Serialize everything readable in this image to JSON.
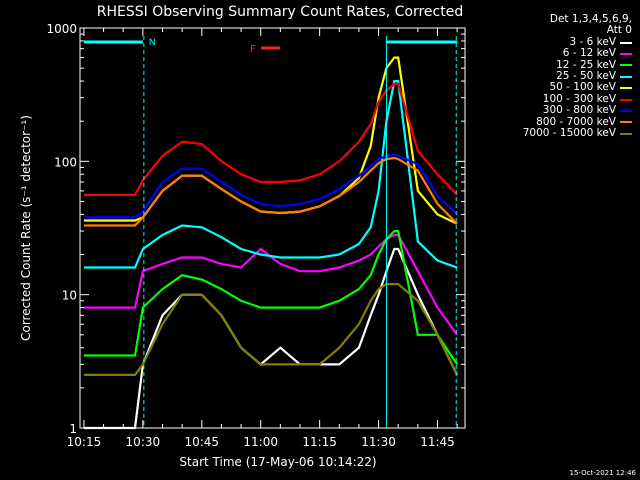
{
  "chart_data": {
    "type": "line",
    "title": "RHESSI Observing Summary Count Rates, Corrected",
    "ylabel": "Corrected Count Rate (s⁻¹ detector⁻¹)",
    "xlabel": "Start Time (17-May-06 10:14:22)",
    "yscale": "log",
    "ylim": [
      1,
      1000
    ],
    "y_ticks": [
      "1",
      "10",
      "100",
      "1000"
    ],
    "xlim": [
      "10:14",
      "11:52"
    ],
    "x_ticks": [
      "10:15",
      "10:30",
      "10:45",
      "11:00",
      "11:15",
      "11:30",
      "11:45"
    ],
    "legend_header": [
      "Det 1,3,4,5,6,9,",
      "Att 0"
    ],
    "flag_label_N": "N",
    "flag_label_F": "F",
    "footer": "15-Oct-2021 12:46",
    "times": [
      "10:15",
      "10:20",
      "10:25",
      "10:28",
      "10:30",
      "10:35",
      "10:40",
      "10:45",
      "10:50",
      "10:55",
      "11:00",
      "11:05",
      "11:10",
      "11:15",
      "11:20",
      "11:25",
      "11:28",
      "11:30",
      "11:32",
      "11:34",
      "11:35",
      "11:40",
      "11:45",
      "11:50"
    ],
    "series": [
      {
        "name": "3 - 6 keV",
        "color": "#ffffff",
        "values": [
          1,
          1,
          1,
          1,
          3,
          7,
          10,
          10,
          7,
          4,
          3,
          4,
          3,
          3,
          3,
          4,
          7,
          10,
          15,
          22,
          22,
          10,
          5,
          2.5
        ]
      },
      {
        "name": "6 - 12 keV",
        "color": "#ff00ff",
        "values": [
          8,
          8,
          8,
          8,
          15,
          17,
          19,
          19,
          17,
          16,
          22,
          17,
          15,
          15,
          16,
          18,
          20,
          23,
          26,
          28,
          28,
          15,
          8,
          5
        ]
      },
      {
        "name": "12 - 25 keV",
        "color": "#00ff00",
        "values": [
          3.5,
          3.5,
          3.5,
          3.5,
          8,
          11,
          14,
          13,
          11,
          9,
          8,
          8,
          8,
          8,
          9,
          11,
          14,
          20,
          26,
          30,
          30,
          5,
          5,
          3
        ]
      },
      {
        "name": "25 - 50 keV",
        "color": "#00ffff",
        "values": [
          16,
          16,
          16,
          16,
          22,
          28,
          33,
          32,
          27,
          22,
          20,
          19,
          19,
          19,
          20,
          24,
          32,
          60,
          200,
          400,
          400,
          25,
          18,
          16
        ]
      },
      {
        "name": "50 - 100 keV",
        "color": "#ffff00",
        "values": [
          36,
          36,
          36,
          36,
          38,
          60,
          78,
          78,
          62,
          50,
          42,
          41,
          42,
          46,
          55,
          75,
          130,
          300,
          500,
          600,
          600,
          60,
          40,
          34
        ]
      },
      {
        "name": "100 - 300 keV",
        "color": "#ff0000",
        "values": [
          56,
          56,
          56,
          56,
          72,
          110,
          140,
          135,
          100,
          80,
          70,
          70,
          72,
          80,
          100,
          140,
          190,
          280,
          340,
          380,
          380,
          120,
          80,
          56
        ]
      },
      {
        "name": "300 - 800 keV",
        "color": "#0000ff",
        "values": [
          38,
          38,
          38,
          38,
          42,
          70,
          88,
          88,
          70,
          56,
          48,
          46,
          48,
          52,
          62,
          78,
          92,
          104,
          110,
          112,
          110,
          95,
          55,
          40
        ]
      },
      {
        "name": "800 - 7000 keV",
        "color": "#ff8000",
        "values": [
          33,
          33,
          33,
          33,
          38,
          60,
          78,
          78,
          62,
          50,
          42,
          41,
          42,
          46,
          55,
          70,
          85,
          97,
          104,
          106,
          104,
          85,
          48,
          34
        ]
      },
      {
        "name": "7000 - 15000 keV",
        "color": "#808000",
        "values": [
          2.5,
          2.5,
          2.5,
          2.5,
          3,
          6,
          10,
          10,
          7,
          4,
          3,
          3,
          3,
          3,
          4,
          6,
          9,
          11,
          12,
          12,
          12,
          9,
          5,
          2.5
        ]
      }
    ]
  }
}
